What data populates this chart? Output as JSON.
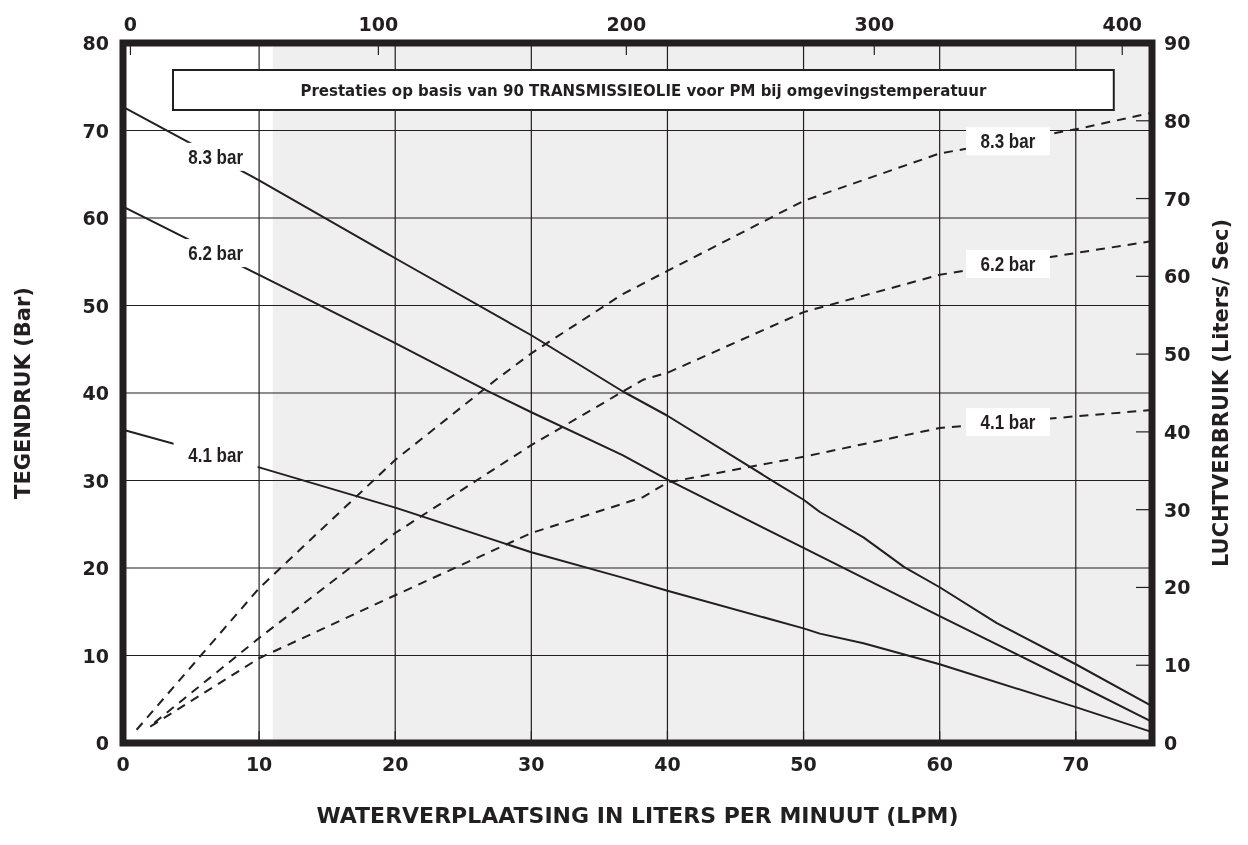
{
  "chart_data": {
    "type": "line",
    "title": "Prestaties op basis van 90 TRANSMISSIEOLIE voor PM bij omgevingstemperatuur",
    "xlabel": "WATERVERPLAATSING IN LITERS PER MINUUT (LPM)",
    "ylabel": "TEGENDRUK (Bar)",
    "y2label": "LUCHTVERBRUIK (Liters/ Sec)",
    "xlim": [
      0,
      75.6
    ],
    "xticks": [
      0,
      10,
      20,
      30,
      40,
      50,
      60,
      70
    ],
    "ylim": [
      0,
      80
    ],
    "yticks": [
      0,
      10,
      20,
      30,
      40,
      50,
      60,
      70,
      80
    ],
    "y2lim": [
      0,
      90
    ],
    "y2ticks": [
      0,
      10,
      20,
      30,
      40,
      50,
      60,
      70,
      80,
      90
    ],
    "x2lim": [
      -3,
      412
    ],
    "x2ticks": [
      0,
      100,
      200,
      300,
      400
    ],
    "grid": true,
    "bands": [
      {
        "axis": "x",
        "from": 11,
        "to": 75.6,
        "color": "#efefef"
      }
    ],
    "series": [
      {
        "name": "8.3 bar",
        "color": "#231f20",
        "line_style": "solid",
        "x": [
          0,
          10,
          20,
          30,
          36.7,
          40,
          48.2,
          50,
          51.2,
          54.4,
          57.4,
          60,
          64.2,
          70,
          75.5
        ],
        "values": [
          72.7,
          64.3,
          55.4,
          46.6,
          40.2,
          37.4,
          29.5,
          27.8,
          26.4,
          23.5,
          20.1,
          17.8,
          13.7,
          9.0,
          4.3
        ]
      },
      {
        "name": "6.2 bar",
        "color": "#231f20",
        "line_style": "solid",
        "x": [
          0,
          10,
          20,
          26.7,
          30,
          36.7,
          40,
          50,
          60,
          70,
          75.5
        ],
        "values": [
          61.3,
          53.5,
          45.7,
          40.3,
          37.8,
          32.9,
          30.1,
          22.3,
          14.5,
          6.8,
          2.5
        ]
      },
      {
        "name": "4.1 bar",
        "color": "#231f20",
        "line_style": "solid",
        "x": [
          0,
          10,
          20,
          30,
          36.7,
          40,
          50,
          51.2,
          54.4,
          60,
          70,
          75.5
        ],
        "values": [
          35.8,
          31.5,
          26.9,
          21.8,
          18.9,
          17.4,
          13.1,
          12.5,
          11.4,
          9.0,
          4.1,
          1.3
        ]
      },
      {
        "name": "8.3 bar",
        "color": "#231f20",
        "line_style": "dashed",
        "axis": "y2",
        "x": [
          1,
          10,
          20,
          27.4,
          30,
          36.7,
          40,
          50,
          60,
          70,
          75.5
        ],
        "values": [
          1.7,
          19.9,
          36.4,
          46.7,
          50.1,
          57.7,
          60.7,
          69.7,
          75.8,
          78.9,
          81.0
        ]
      },
      {
        "name": "6.2 bar",
        "color": "#231f20",
        "line_style": "dashed",
        "axis": "y2",
        "x": [
          2.3,
          10,
          20,
          30,
          38.2,
          40,
          50,
          60,
          70,
          75.5
        ],
        "values": [
          2.6,
          13.5,
          27.0,
          38.3,
          46.7,
          47.6,
          55.4,
          60.2,
          63.0,
          64.5
        ]
      },
      {
        "name": "4.1 bar",
        "color": "#231f20",
        "line_style": "dashed",
        "axis": "y2",
        "x": [
          2.0,
          10,
          20,
          30,
          38.2,
          40,
          50,
          60,
          70,
          75.5
        ],
        "values": [
          2.1,
          10.9,
          19.0,
          27.0,
          31.6,
          33.5,
          36.8,
          40.5,
          42.0,
          42.8
        ]
      }
    ]
  }
}
